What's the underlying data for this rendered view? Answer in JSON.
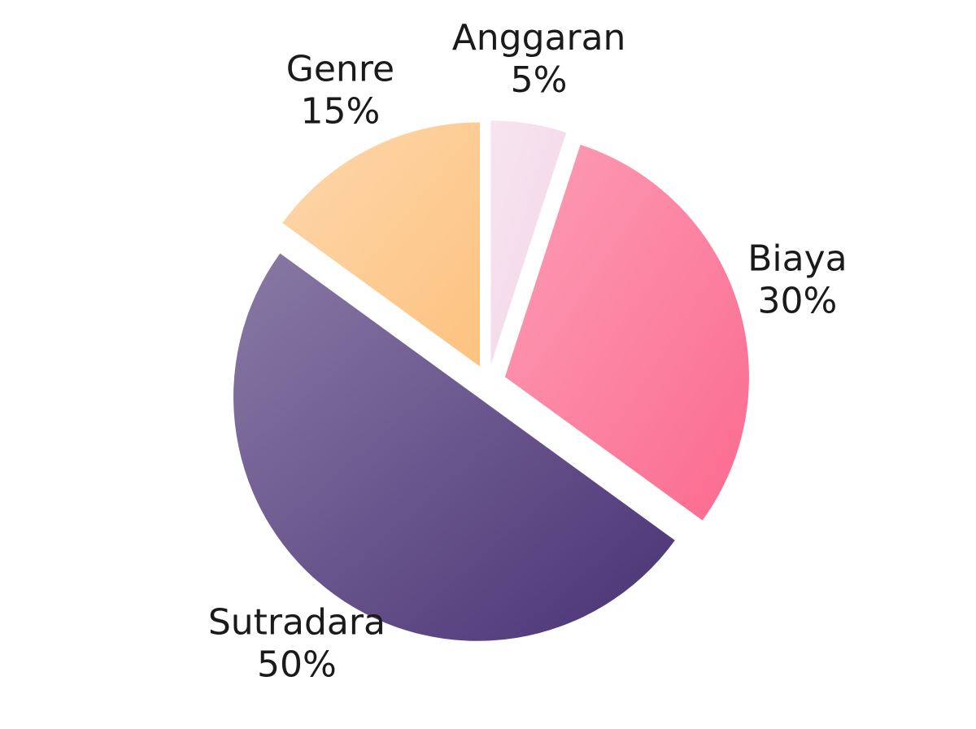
{
  "chart_data": {
    "type": "pie",
    "categories": [
      "Anggaran",
      "Biaya",
      "Sutradara",
      "Genre"
    ],
    "values": [
      5,
      30,
      50,
      15
    ],
    "value_labels": [
      "5%",
      "30%",
      "50%",
      "15%"
    ],
    "colors": [
      "#f3d6e8",
      "#fb6a8f",
      "#4a3275",
      "#fdc27f"
    ]
  }
}
